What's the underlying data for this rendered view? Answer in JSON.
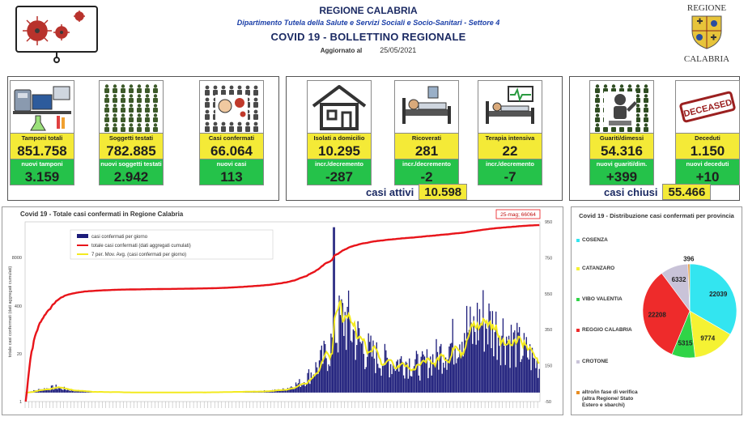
{
  "header": {
    "region": "REGIONE CALABRIA",
    "department": "Dipartimento Tutela della Salute e Servizi Sociali e Socio-Sanitari - Settore 4",
    "title": "COVID 19 - BOLLETTINO REGIONALE",
    "updated_label": "Aggiornato al",
    "updated_date": "25/05/2021",
    "crest_top": "REGIONE",
    "crest_bottom": "CALABRIA"
  },
  "cards": [
    {
      "label": "Tamponi totali",
      "value": "851.758",
      "sub_label": "nuovi tamponi",
      "sub_value": "3.159",
      "icon": "lab-icon"
    },
    {
      "label": "Soggetti testati",
      "value": "782.885",
      "sub_label": "nuovi soggetti testati",
      "sub_value": "2.942",
      "icon": "people-grid-icon"
    },
    {
      "label": "Casi confermati",
      "value": "66.064",
      "sub_label": "nuovi casi",
      "sub_value": "113",
      "icon": "virus-person-icon"
    },
    {
      "label": "Isolati a domicilio",
      "value": "10.295",
      "sub_label": "incr./decremento",
      "sub_value": "-287",
      "icon": "house-icon"
    },
    {
      "label": "Ricoverati",
      "value": "281",
      "sub_label": "incr./decremento",
      "sub_value": "-2",
      "icon": "hospital-bed-icon"
    },
    {
      "label": "Terapia intensiva",
      "value": "22",
      "sub_label": "incr./decremento",
      "sub_value": "-7",
      "icon": "icu-bed-icon"
    },
    {
      "label": "Guariti/dimessi",
      "value": "54.316",
      "sub_label": "nuovi guariti/dim.",
      "sub_value": "+399",
      "icon": "recovered-icon"
    },
    {
      "label": "Deceduti",
      "value": "1.150",
      "sub_label": "nuovi deceduti",
      "sub_value": "+10",
      "icon": "deceased-stamp-icon"
    }
  ],
  "deceased_stamp": "DECEASED",
  "summary": {
    "active_label": "casi attivi",
    "active_value": "10.598",
    "closed_label": "casi chiusi",
    "closed_value": "55.466"
  },
  "chart_data": [
    {
      "type": "bar",
      "title": "Covid 19 - Totale casi confermati in Regione Calabria",
      "ylabel": "totale casi confermati (dati aggregati cumulati)",
      "left_axis_ticks": [
        "1",
        "20",
        "400",
        "8000"
      ],
      "right_axis_ticks": [
        "-50",
        "150",
        "350",
        "550",
        "750",
        "950"
      ],
      "right_axis_range": [
        -50,
        950
      ],
      "annotation": "25-mag; 66064",
      "legend": [
        {
          "name": "casi confermati per giorno",
          "color": "#1c1c7a"
        },
        {
          "name": "totale casi confermati (dati aggregati cumulati)",
          "color": "#e8141a"
        },
        {
          "name": "7 per. Mov. Avg. (casi confermati per giorno)",
          "color": "#f3ea1f"
        }
      ],
      "x_axis": "days from early March 2020 to 25 May 2021",
      "cumulative_total_last": 66064,
      "daily_profile": [
        [
          0,
          0
        ],
        [
          0.03,
          18
        ],
        [
          0.06,
          30
        ],
        [
          0.09,
          12
        ],
        [
          0.13,
          4
        ],
        [
          0.2,
          1
        ],
        [
          0.3,
          1
        ],
        [
          0.38,
          2
        ],
        [
          0.45,
          6
        ],
        [
          0.5,
          15
        ],
        [
          0.54,
          60
        ],
        [
          0.57,
          150
        ],
        [
          0.59,
          230
        ],
        [
          0.605,
          340
        ],
        [
          0.62,
          420
        ],
        [
          0.64,
          320
        ],
        [
          0.66,
          240
        ],
        [
          0.68,
          200
        ],
        [
          0.71,
          165
        ],
        [
          0.74,
          175
        ],
        [
          0.77,
          145
        ],
        [
          0.8,
          200
        ],
        [
          0.83,
          270
        ],
        [
          0.855,
          370
        ],
        [
          0.87,
          320
        ],
        [
          0.885,
          420
        ],
        [
          0.91,
          360
        ],
        [
          0.93,
          330
        ],
        [
          0.955,
          260
        ],
        [
          0.98,
          210
        ],
        [
          1.0,
          140
        ]
      ],
      "series_colors": {
        "bars": "#1c1c7a",
        "total": "#e8141a",
        "avg": "#f3ea1f"
      }
    },
    {
      "type": "pie",
      "title": "Covid 19 - Distribuzione casi confermati per provincia",
      "categories": [
        "COSENZA",
        "CATANZARO",
        "VIBO VALENTIA",
        "REGGIO CALABRIA",
        "CROTONE",
        "altro/in fase di verifica (altra Regione/ Stato Estero e sbarchi)"
      ],
      "values": [
        22039,
        9774,
        5315,
        22208,
        6332,
        396
      ],
      "colors": [
        "#33e5f0",
        "#f5f233",
        "#30d447",
        "#ee2b2b",
        "#c9c3d8",
        "#e88d22"
      ]
    }
  ]
}
